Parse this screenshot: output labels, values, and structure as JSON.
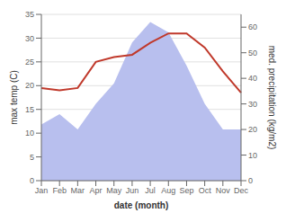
{
  "chart_data": {
    "type": "line",
    "categories": [
      "Jan",
      "Feb",
      "Mar",
      "Apr",
      "May",
      "Jun",
      "Jul",
      "Aug",
      "Sep",
      "Oct",
      "Nov",
      "Dec"
    ],
    "series": [
      {
        "type": "area",
        "color": "#b8bfee",
        "axis": "y2",
        "values": [
          22,
          26,
          20,
          30,
          38,
          54,
          62,
          58,
          45,
          30,
          20,
          20
        ]
      },
      {
        "type": "line",
        "color": "#c0392b",
        "values": [
          19.5,
          19.0,
          19.5,
          25.0,
          26.0,
          26.5,
          29.0,
          31.0,
          31.0,
          28.0,
          23.0,
          18.5
        ]
      }
    ],
    "xlabel": "date (month)",
    "ylabel": "max temp (C)",
    "y2label": "med. precipitation (kg/m2)",
    "ylim": [
      0,
      35
    ],
    "yticks": [
      0,
      5,
      10,
      15,
      20,
      25,
      30,
      35
    ],
    "y2lim": [
      0,
      65
    ],
    "y2ticks": [
      0,
      10,
      20,
      30,
      40,
      50,
      60
    ],
    "grid": true
  }
}
